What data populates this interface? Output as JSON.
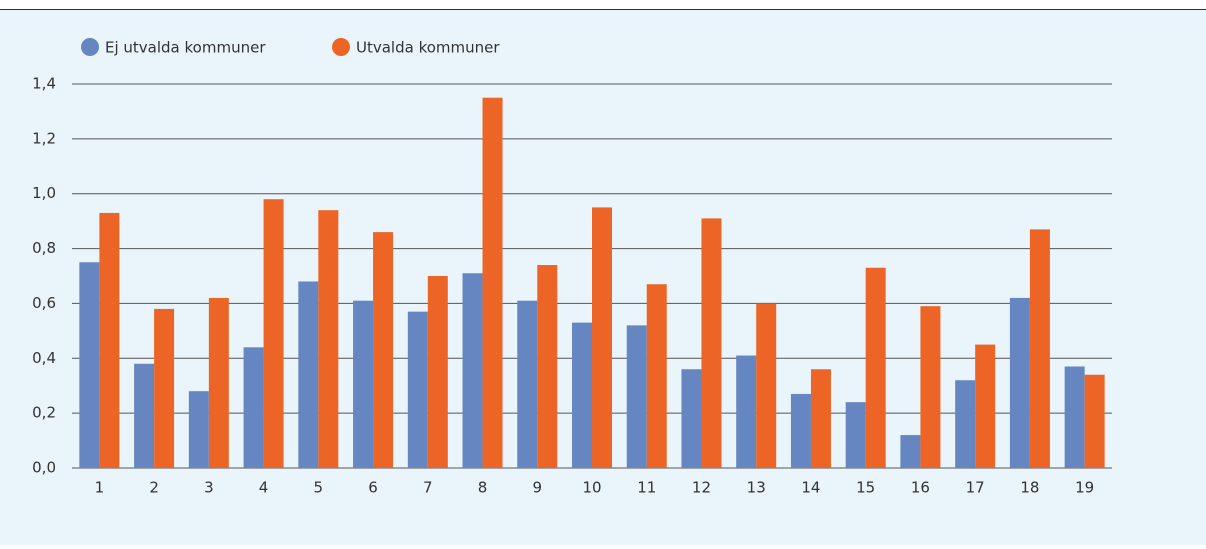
{
  "chart_data": {
    "type": "bar",
    "categories": [
      "1",
      "2",
      "3",
      "4",
      "5",
      "6",
      "7",
      "8",
      "9",
      "10",
      "11",
      "12",
      "13",
      "14",
      "15",
      "16",
      "17",
      "18",
      "19"
    ],
    "series": [
      {
        "name": "Ej utvalda kommuner",
        "color": "#6586c1",
        "values": [
          0.75,
          0.38,
          0.28,
          0.44,
          0.68,
          0.61,
          0.57,
          0.71,
          0.61,
          0.53,
          0.52,
          0.36,
          0.41,
          0.27,
          0.24,
          0.12,
          0.32,
          0.62,
          0.37
        ]
      },
      {
        "name": "Utvalda kommuner",
        "color": "#ec6527",
        "values": [
          0.93,
          0.58,
          0.62,
          0.98,
          0.94,
          0.86,
          0.7,
          1.35,
          0.74,
          0.95,
          0.67,
          0.91,
          0.6,
          0.36,
          0.73,
          0.59,
          0.45,
          0.87,
          0.34
        ]
      }
    ],
    "ylim": [
      0,
      1.4
    ],
    "yticks": [
      {
        "value": 0,
        "label": "0,0"
      },
      {
        "value": 0.2,
        "label": "0,2"
      },
      {
        "value": 0.4,
        "label": "0,4"
      },
      {
        "value": 0.6,
        "label": "0,6"
      },
      {
        "value": 0.8,
        "label": "0,8"
      },
      {
        "value": 1.0,
        "label": "1,0"
      },
      {
        "value": 1.2,
        "label": "1,2"
      },
      {
        "value": 1.4,
        "label": "1,4"
      }
    ],
    "grid": true
  }
}
